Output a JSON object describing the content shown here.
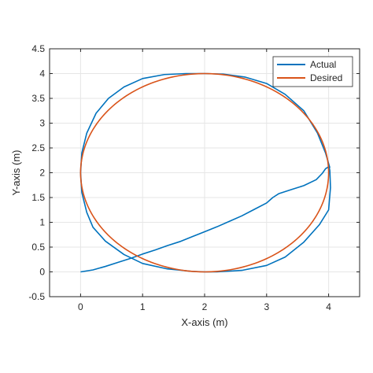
{
  "chart_data": {
    "type": "line",
    "title": "",
    "xlabel": "X-axis (m)",
    "ylabel": "Y-axis (m)",
    "xlim": [
      -0.5,
      4.5
    ],
    "ylim": [
      -0.5,
      4.5
    ],
    "x_ticks": [
      0,
      1,
      2,
      3,
      4
    ],
    "x_tick_labels": [
      "0",
      "1",
      "2",
      "3",
      "4"
    ],
    "y_ticks": [
      -0.5,
      0,
      0.5,
      1,
      1.5,
      2,
      2.5,
      3,
      3.5,
      4,
      4.5
    ],
    "y_tick_labels": [
      "-0.5",
      "0",
      "0.5",
      "1",
      "1.5",
      "2",
      "2.5",
      "3",
      "3.5",
      "4",
      "4.5"
    ],
    "grid": true,
    "legend_position": "top-right",
    "series": [
      {
        "name": "Actual",
        "color": "#0072bd",
        "x": [
          0,
          0.2,
          0.4,
          0.6,
          0.8,
          1.0,
          1.2,
          1.4,
          1.6,
          1.8,
          2.0,
          2.2,
          2.4,
          2.6,
          2.8,
          3.0,
          3.1,
          3.2,
          3.4,
          3.6,
          3.8,
          3.9,
          3.95,
          4.0,
          4.0,
          4.02,
          4.03,
          4.0,
          3.85,
          3.6,
          3.3,
          3.0,
          2.6,
          2.2,
          2.0,
          1.8,
          1.4,
          1.0,
          0.7,
          0.4,
          0.2,
          0.1,
          0.02,
          0.0,
          0.02,
          0.1,
          0.25,
          0.45,
          0.7,
          1.0,
          1.35,
          1.7,
          2.0,
          2.3,
          2.65,
          3.0,
          3.3,
          3.6,
          3.82,
          3.95,
          4.02
        ],
        "y": [
          0,
          0.04,
          0.11,
          0.19,
          0.27,
          0.36,
          0.44,
          0.53,
          0.61,
          0.71,
          0.81,
          0.91,
          1.02,
          1.13,
          1.26,
          1.39,
          1.5,
          1.58,
          1.66,
          1.74,
          1.86,
          1.99,
          2.08,
          2.12,
          2.18,
          2.04,
          1.7,
          1.25,
          0.95,
          0.6,
          0.3,
          0.13,
          0.03,
          0.0,
          0.0,
          0.01,
          0.06,
          0.17,
          0.35,
          0.62,
          0.9,
          1.2,
          1.6,
          2.0,
          2.4,
          2.8,
          3.2,
          3.5,
          3.73,
          3.9,
          3.98,
          4.0,
          4.0,
          3.99,
          3.93,
          3.8,
          3.58,
          3.25,
          2.8,
          2.4,
          2.1
        ]
      },
      {
        "name": "Desired",
        "color": "#d95319",
        "parametric": "circle",
        "center": [
          2,
          2
        ],
        "radius": [
          2,
          2
        ]
      }
    ]
  }
}
